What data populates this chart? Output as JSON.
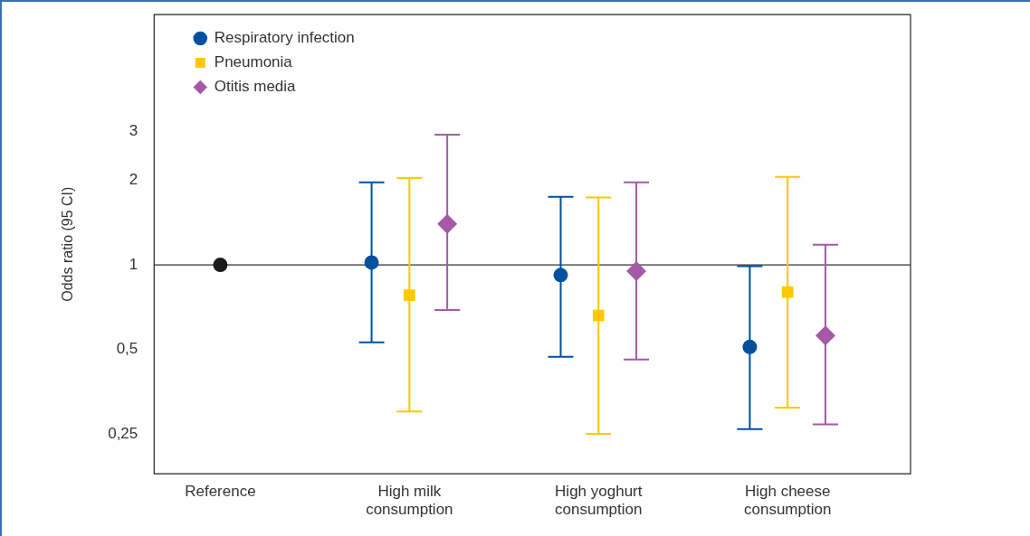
{
  "chart_data": {
    "type": "scatter",
    "ylabel": "Odds ratio (95 CI)",
    "categories": [
      "Reference",
      "High milk consumption",
      "High yoghurt consumption",
      "High cheese consumption"
    ],
    "log": "y",
    "ylim": [
      0.18,
      7.8
    ],
    "yticks": [
      {
        "value": 0.25,
        "label": "0,25"
      },
      {
        "value": 0.5,
        "label": "0,5"
      },
      1,
      2,
      3
    ],
    "legend": "top left",
    "grid": false,
    "ref_lines": [
      {
        "axis": "y",
        "value": 1,
        "color": "#000000"
      }
    ],
    "series": [
      {
        "color": "#1a1a1a",
        "marker": "circle",
        "values": [
          1,
          null,
          null,
          null
        ]
      },
      {
        "name": "Respiratory infection",
        "color": "#0050a0",
        "marker": "circle",
        "values": [
          null,
          1.02,
          0.92,
          0.51
        ],
        "errors": [
          null,
          [
            0.53,
            1.97
          ],
          [
            0.47,
            1.75
          ],
          [
            0.26,
            0.99
          ]
        ]
      },
      {
        "name": "Pneumonia",
        "color": "#ffc800",
        "marker": "square",
        "values": [
          null,
          0.78,
          0.66,
          0.8
        ],
        "errors": [
          null,
          [
            0.3,
            2.04
          ],
          [
            0.25,
            1.74
          ],
          [
            0.31,
            2.06
          ]
        ]
      },
      {
        "name": "Otitis media",
        "color": "#a45aa8",
        "marker": "diamond",
        "values": [
          null,
          1.4,
          0.95,
          0.56
        ],
        "errors": [
          null,
          [
            0.69,
            2.91
          ],
          [
            0.46,
            1.97
          ],
          [
            0.27,
            1.18
          ]
        ]
      }
    ]
  }
}
